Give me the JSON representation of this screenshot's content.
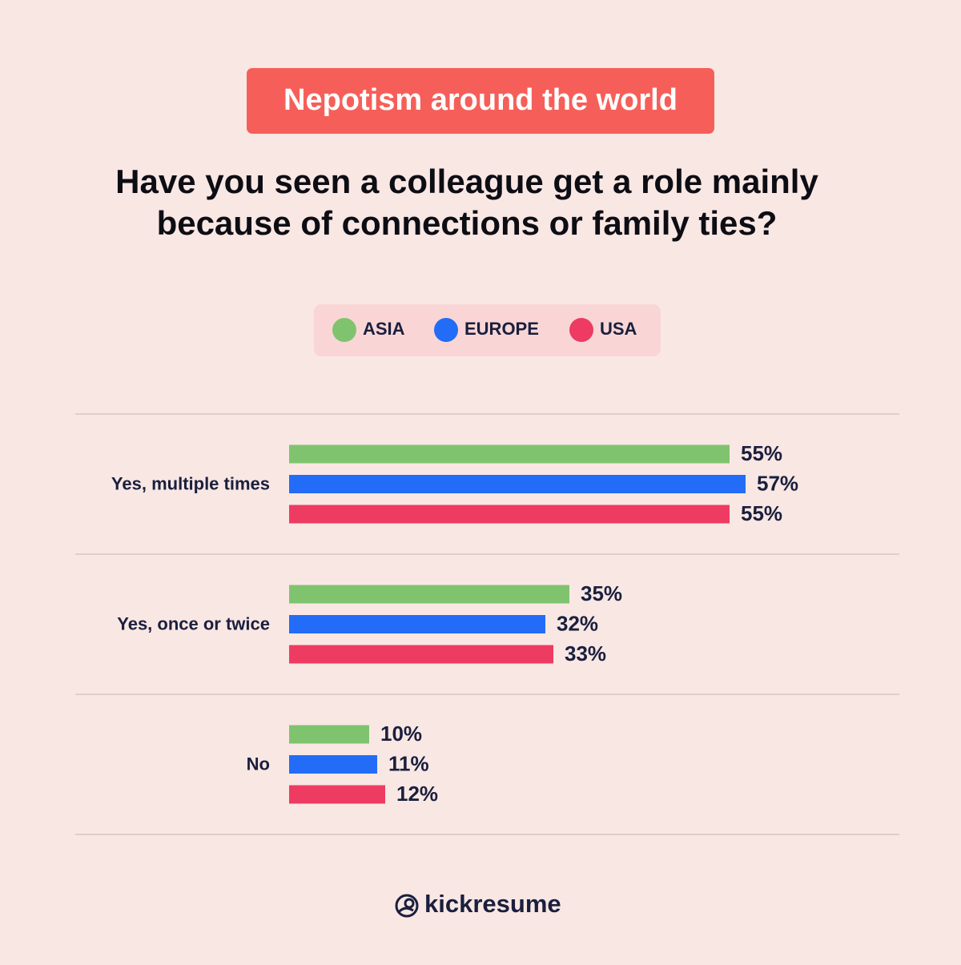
{
  "chart_data": {
    "type": "bar",
    "orientation": "horizontal",
    "header": "Nepotism around the world",
    "title": [
      "Have you seen a colleague get a role mainly",
      "because of connections or family ties?"
    ],
    "categories": [
      "Yes, multiple times",
      "Yes, once or twice",
      "No"
    ],
    "series": [
      {
        "name": "ASIA",
        "color": "#80c36f",
        "values": [
          55,
          35,
          10
        ],
        "value_labels": [
          "55%",
          "35%",
          "10%"
        ]
      },
      {
        "name": "EUROPE",
        "color": "#236cf7",
        "values": [
          57,
          32,
          11
        ],
        "value_labels": [
          "57%",
          "32%",
          "11%"
        ]
      },
      {
        "name": "USA",
        "color": "#ee3b62",
        "values": [
          55,
          33,
          12
        ],
        "value_labels": [
          "55%",
          "33%",
          "12%"
        ]
      }
    ],
    "legend": "top"
  },
  "brand": "kickresume"
}
